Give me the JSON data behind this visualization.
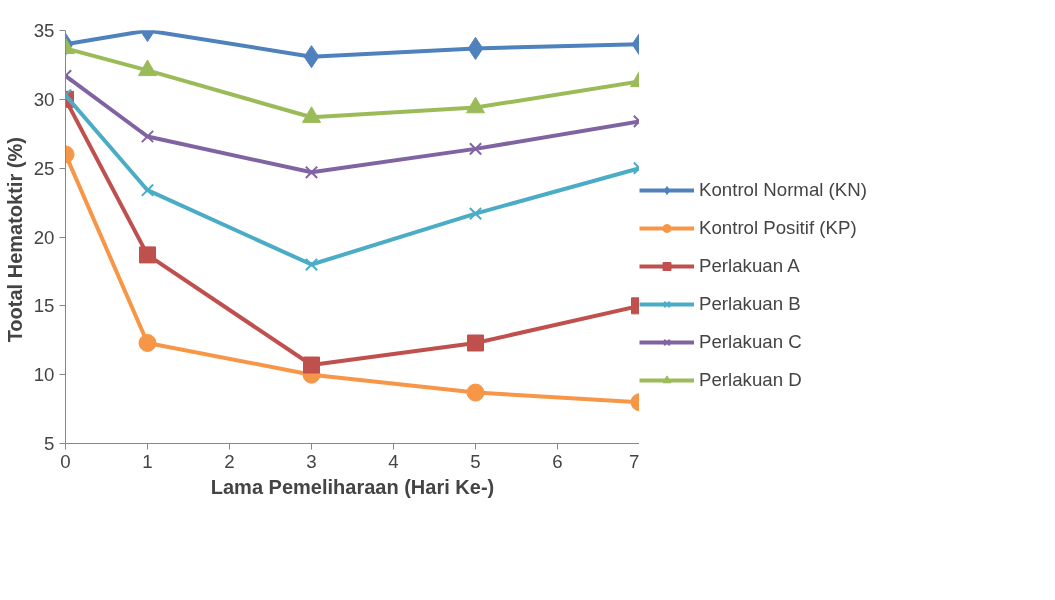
{
  "chart_data": {
    "type": "line",
    "xlabel": "Lama Pemeliharaan (Hari Ke-)",
    "ylabel": "Tootal  Hematoktir (%)",
    "x": [
      0,
      1,
      3,
      5,
      7
    ],
    "xlim": [
      0,
      7
    ],
    "xticks": [
      0,
      1,
      2,
      3,
      4,
      5,
      6,
      7
    ],
    "ylim": [
      5,
      35
    ],
    "yticks": [
      5,
      10,
      15,
      20,
      25,
      30,
      35
    ],
    "grid": false,
    "legend": "right",
    "line_style": "solid",
    "series": [
      {
        "name": "Kontrol Normal (KN)",
        "color": "#4f81bd",
        "marker": "diamond",
        "values": [
          34.0,
          35.0,
          33.1,
          33.7,
          34.0
        ]
      },
      {
        "name": "Kontrol Positif (KP)",
        "color": "#f79646",
        "marker": "circle",
        "values": [
          26.0,
          12.3,
          10.0,
          8.7,
          8.0
        ]
      },
      {
        "name": "Perlakuan A",
        "color": "#c0504d",
        "marker": "square",
        "values": [
          30.0,
          18.7,
          10.7,
          12.3,
          15.0
        ]
      },
      {
        "name": "Perlakuan B",
        "color": "#4bacc6",
        "marker": "cross",
        "values": [
          30.3,
          23.4,
          18.0,
          21.7,
          25.0
        ]
      },
      {
        "name": "Perlakuan C",
        "color": "#8064a2",
        "marker": "cross",
        "values": [
          31.7,
          27.3,
          24.7,
          26.4,
          28.4
        ]
      },
      {
        "name": "Perlakuan D",
        "color": "#9bbb59",
        "marker": "triangle",
        "values": [
          33.7,
          32.1,
          28.7,
          29.4,
          31.3
        ]
      }
    ]
  }
}
